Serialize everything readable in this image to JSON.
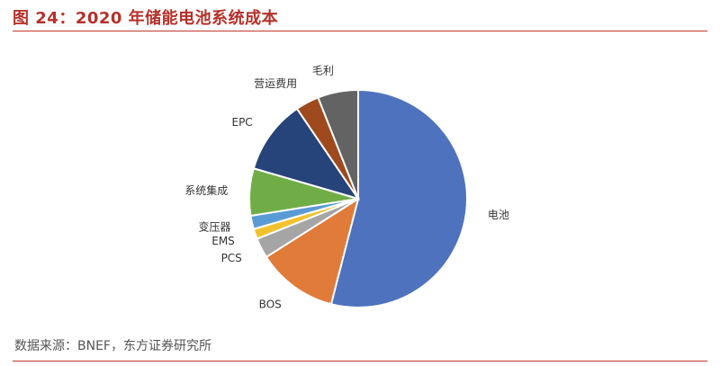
{
  "figure": {
    "title": "图 24：2020 年储能电池系统成本",
    "source": "数据来源：BNEF，东方证券研究所"
  },
  "chart_data": {
    "type": "pie",
    "title": "",
    "categories": [
      "电池",
      "BOS",
      "PCS",
      "EMS",
      "变压器",
      "系统集成",
      "EPC",
      "营运费用",
      "毛利"
    ],
    "values": [
      54,
      12,
      3,
      1.5,
      2,
      7,
      11,
      3.5,
      6
    ],
    "unit_hint": "approx. percent share read from slice angles",
    "colors": [
      "#4f72be",
      "#e07b39",
      "#a5a5a5",
      "#f2c12e",
      "#5b9bd5",
      "#70ad47",
      "#26437a",
      "#9e4a1e",
      "#636363"
    ],
    "legend": "none",
    "labels_outside": true
  }
}
